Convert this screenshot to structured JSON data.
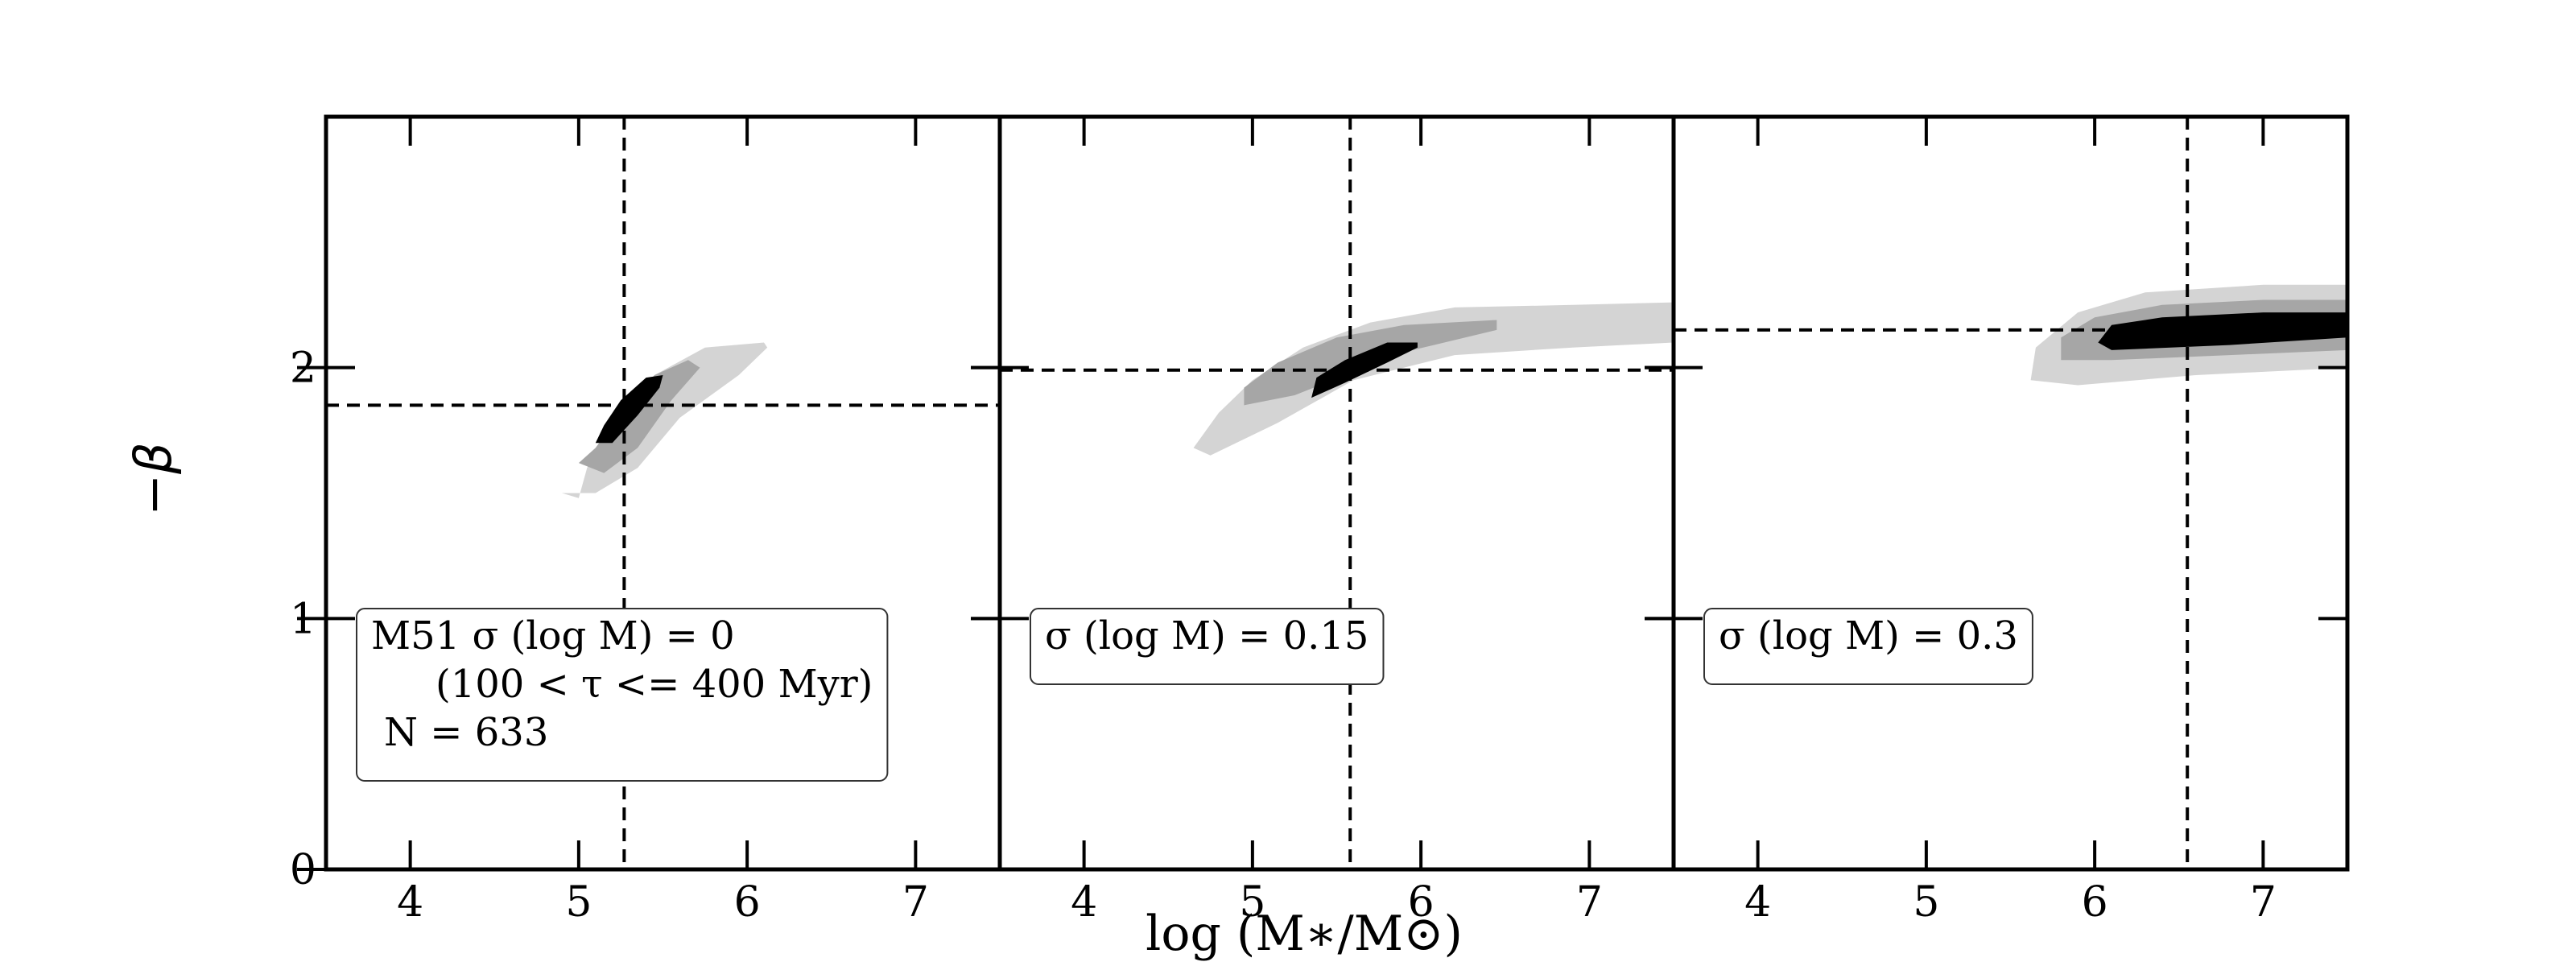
{
  "chart_data": {
    "type": "contour",
    "xlabel": "log (M∗/M⊙)",
    "ylabel": "−β",
    "xlim": [
      3.5,
      7.5
    ],
    "ylim": [
      0,
      3
    ],
    "x_ticks": [
      4,
      5,
      6,
      7
    ],
    "y_ticks": [
      0,
      1,
      2
    ],
    "x_tick_labels": [
      "4",
      "5",
      "6",
      "7"
    ],
    "y_tick_labels": [
      "0",
      "1",
      "2"
    ],
    "panels": [
      {
        "legend_lines": [
          "M51 σ (log M) = 0",
          "(100 < τ <= 400 Myr)",
          "N = 633"
        ],
        "legend_position": "lower-left",
        "vline_x": 5.27,
        "hline_y": 1.85,
        "contours": [
          {
            "level": "outer",
            "color": "#d4d4d4",
            "points": [
              [
                4.9,
                1.5
              ],
              [
                5.0,
                1.48
              ],
              [
                5.05,
                1.6
              ],
              [
                5.2,
                1.78
              ],
              [
                5.45,
                1.97
              ],
              [
                5.75,
                2.08
              ],
              [
                6.1,
                2.1
              ],
              [
                6.12,
                2.08
              ],
              [
                5.95,
                1.97
              ],
              [
                5.6,
                1.8
              ],
              [
                5.35,
                1.6
              ],
              [
                5.1,
                1.5
              ]
            ]
          },
          {
            "level": "middle",
            "color": "#a6a6a6",
            "points": [
              [
                5.0,
                1.62
              ],
              [
                5.1,
                1.68
              ],
              [
                5.25,
                1.82
              ],
              [
                5.45,
                1.97
              ],
              [
                5.65,
                2.03
              ],
              [
                5.72,
                2.0
              ],
              [
                5.55,
                1.87
              ],
              [
                5.35,
                1.68
              ],
              [
                5.15,
                1.58
              ]
            ]
          },
          {
            "level": "inner",
            "color": "#000000",
            "points": [
              [
                5.1,
                1.7
              ],
              [
                5.15,
                1.77
              ],
              [
                5.25,
                1.87
              ],
              [
                5.4,
                1.96
              ],
              [
                5.5,
                1.97
              ],
              [
                5.48,
                1.92
              ],
              [
                5.35,
                1.81
              ],
              [
                5.2,
                1.7
              ]
            ]
          }
        ]
      },
      {
        "legend_lines": [
          "σ (log M) = 0.15"
        ],
        "legend_position": "lower-left",
        "vline_x": 5.58,
        "hline_y": 1.99,
        "contours": [
          {
            "level": "outer",
            "color": "#d4d4d4",
            "points": [
              [
                4.65,
                1.68
              ],
              [
                4.75,
                1.65
              ],
              [
                5.15,
                1.78
              ],
              [
                5.6,
                1.95
              ],
              [
                6.2,
                2.05
              ],
              [
                6.9,
                2.08
              ],
              [
                7.5,
                2.1
              ],
              [
                7.5,
                2.26
              ],
              [
                6.9,
                2.25
              ],
              [
                6.2,
                2.24
              ],
              [
                5.7,
                2.18
              ],
              [
                5.3,
                2.08
              ],
              [
                5.0,
                1.95
              ],
              [
                4.8,
                1.82
              ]
            ]
          },
          {
            "level": "middle",
            "color": "#a6a6a6",
            "points": [
              [
                4.95,
                1.85
              ],
              [
                5.25,
                1.89
              ],
              [
                5.55,
                1.97
              ],
              [
                5.95,
                2.07
              ],
              [
                6.45,
                2.15
              ],
              [
                6.45,
                2.19
              ],
              [
                5.9,
                2.17
              ],
              [
                5.5,
                2.12
              ],
              [
                5.15,
                2.02
              ],
              [
                4.95,
                1.92
              ]
            ]
          },
          {
            "level": "inner",
            "color": "#000000",
            "points": [
              [
                5.35,
                1.88
              ],
              [
                5.55,
                1.94
              ],
              [
                5.8,
                2.02
              ],
              [
                5.98,
                2.08
              ],
              [
                5.98,
                2.1
              ],
              [
                5.8,
                2.1
              ],
              [
                5.55,
                2.03
              ],
              [
                5.38,
                1.96
              ]
            ]
          }
        ]
      },
      {
        "legend_lines": [
          "σ (log M) = 0.3"
        ],
        "legend_position": "lower-left",
        "vline_x": 6.55,
        "hline_y": 2.15,
        "contours": [
          {
            "level": "outer",
            "color": "#d4d4d4",
            "points": [
              [
                5.62,
                1.95
              ],
              [
                5.9,
                1.93
              ],
              [
                6.6,
                1.97
              ],
              [
                7.5,
                2.0
              ],
              [
                7.5,
                2.33
              ],
              [
                7.0,
                2.33
              ],
              [
                6.3,
                2.3
              ],
              [
                5.9,
                2.22
              ],
              [
                5.65,
                2.08
              ]
            ]
          },
          {
            "level": "middle",
            "color": "#a6a6a6",
            "points": [
              [
                5.8,
                2.03
              ],
              [
                6.1,
                2.03
              ],
              [
                6.8,
                2.05
              ],
              [
                7.5,
                2.07
              ],
              [
                7.5,
                2.27
              ],
              [
                7.0,
                2.27
              ],
              [
                6.4,
                2.25
              ],
              [
                6.0,
                2.2
              ],
              [
                5.8,
                2.12
              ]
            ]
          },
          {
            "level": "inner",
            "color": "#000000",
            "points": [
              [
                6.02,
                2.1
              ],
              [
                6.1,
                2.07
              ],
              [
                6.8,
                2.09
              ],
              [
                7.5,
                2.12
              ],
              [
                7.5,
                2.22
              ],
              [
                7.0,
                2.22
              ],
              [
                6.4,
                2.2
              ],
              [
                6.1,
                2.17
              ]
            ]
          }
        ]
      }
    ]
  }
}
